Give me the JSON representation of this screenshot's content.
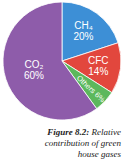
{
  "chart_data": {
    "type": "pie",
    "title": "Figure 8.2: Relative contribution of green house gases",
    "categories": [
      "CH₄",
      "CFC",
      "Others",
      "CO₂"
    ],
    "values": [
      20,
      14,
      6,
      60
    ],
    "value_labels": [
      "20%",
      "14%",
      "6%",
      "60%"
    ],
    "colors": [
      "#3d8fd6",
      "#e2473d",
      "#5cb85c",
      "#8e5caa"
    ],
    "data_labels": true
  }
}
